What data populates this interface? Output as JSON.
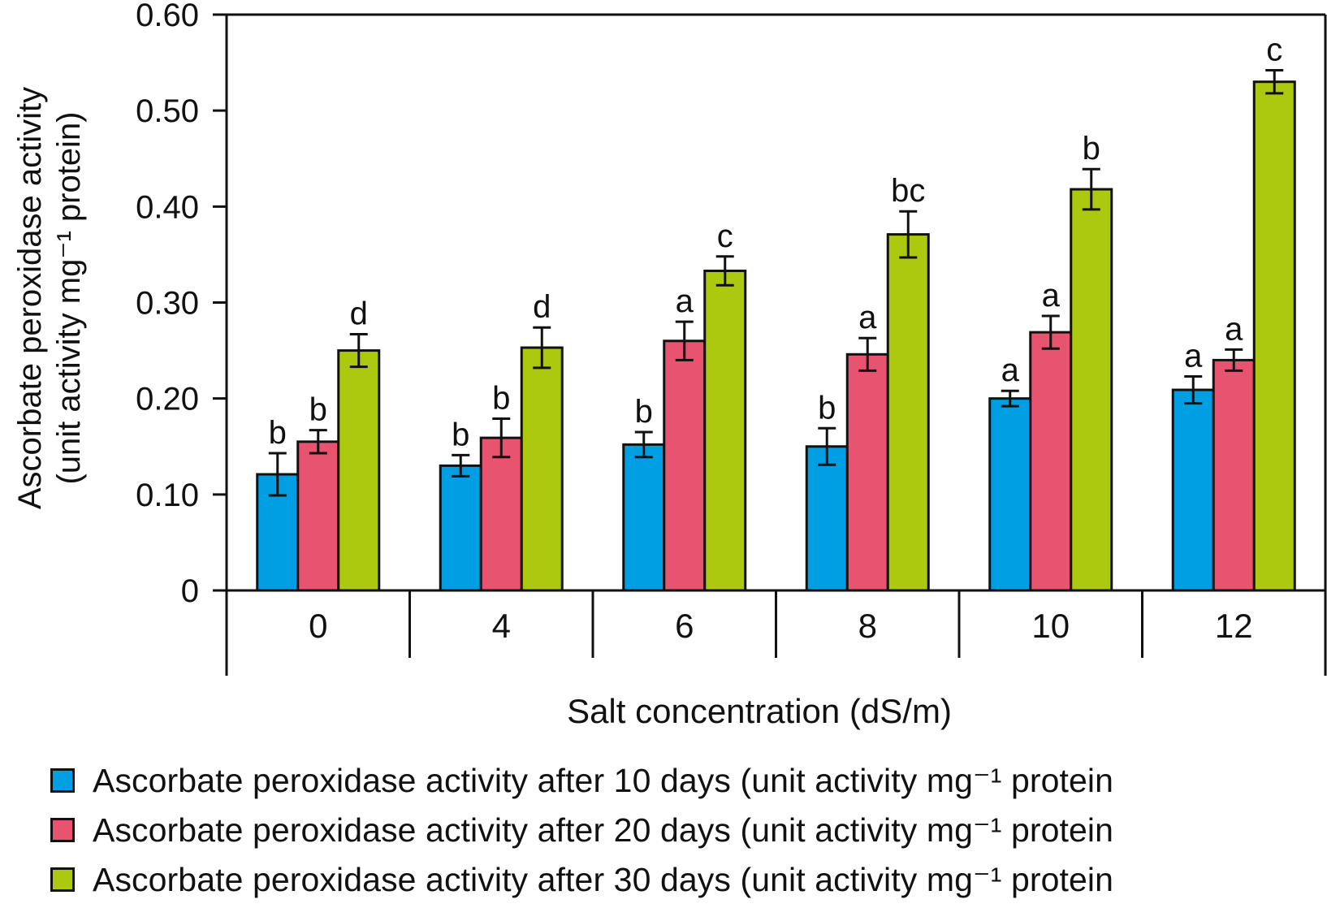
{
  "chart_data": {
    "type": "bar",
    "ylabel_line1": "Ascorbate peroxidase activity",
    "ylabel_line2": "(unit activity mg⁻¹ protein)",
    "xlabel": "Salt concentration (dS/m)",
    "ylim": [
      0,
      0.6
    ],
    "yticks": [
      0,
      0.1,
      0.2,
      0.3,
      0.4,
      0.5,
      0.6
    ],
    "ytick_labels": [
      "0",
      "0.10",
      "0.20",
      "0.30",
      "0.40",
      "0.50",
      "0.60"
    ],
    "categories": [
      "0",
      "4",
      "6",
      "8",
      "10",
      "12"
    ],
    "grid": false,
    "legend_position": "bottom",
    "series": [
      {
        "name": "Ascorbate peroxidase activity after 10 days (unit activity mg⁻¹ protein",
        "color": "#009fe3",
        "values": [
          0.121,
          0.13,
          0.152,
          0.15,
          0.2,
          0.209
        ],
        "errors": [
          0.022,
          0.011,
          0.013,
          0.019,
          0.008,
          0.014
        ],
        "letters": [
          "b",
          "b",
          "b",
          "b",
          "a",
          "a"
        ]
      },
      {
        "name": "Ascorbate peroxidase activity after 20 days (unit activity mg⁻¹ protein",
        "color": "#e8536f",
        "values": [
          0.155,
          0.159,
          0.26,
          0.246,
          0.269,
          0.24
        ],
        "errors": [
          0.012,
          0.02,
          0.02,
          0.017,
          0.017,
          0.011
        ],
        "letters": [
          "b",
          "b",
          "a",
          "a",
          "a",
          "a"
        ]
      },
      {
        "name": "Ascorbate peroxidase activity after 30 days (unit activity mg⁻¹ protein",
        "color": "#acc80f",
        "values": [
          0.25,
          0.253,
          0.333,
          0.371,
          0.418,
          0.53
        ],
        "errors": [
          0.017,
          0.021,
          0.015,
          0.024,
          0.021,
          0.012
        ],
        "letters": [
          "d",
          "d",
          "c",
          "bc",
          "b",
          "c"
        ]
      }
    ]
  }
}
